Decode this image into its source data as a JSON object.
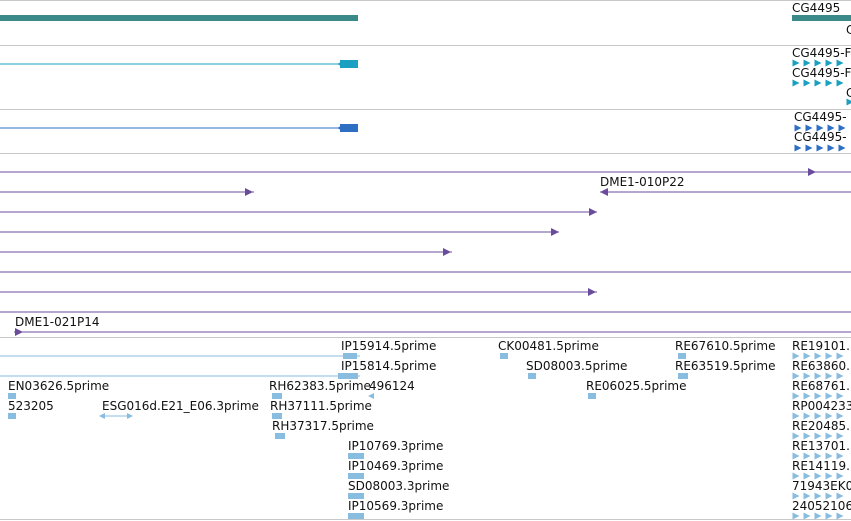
{
  "colors": {
    "gene": "#3a8a8a",
    "transcript_mrna": "#1aa0c0",
    "transcript_cds": "#2e6fc4",
    "clone": "#6a4c9c",
    "est": "#89bde0",
    "separator": "#c8c8c8",
    "text": "#111111"
  },
  "tracks": {
    "gene": {
      "items": [
        {
          "label": "CG4495"
        },
        {
          "label": "C"
        }
      ]
    },
    "mrna": {
      "items": [
        {
          "label": ""
        },
        {
          "label": "CG4495-F"
        },
        {
          "label": "CG4495-F"
        },
        {
          "label": "C"
        }
      ]
    },
    "cds": {
      "items": [
        {
          "label": ""
        },
        {
          "label": "CG4495-"
        },
        {
          "label": "CG4495-"
        }
      ]
    },
    "clones": {
      "items": [
        {
          "label": ""
        },
        {
          "label": "DME1-010P22"
        },
        {
          "label": ""
        },
        {
          "label": ""
        },
        {
          "label": ""
        },
        {
          "label": ""
        },
        {
          "label": ""
        },
        {
          "label": "DME1-021P14"
        }
      ]
    },
    "ests": {
      "labels": [
        "IP15914.5prime",
        "CK00481.5prime",
        "RE67610.5prime",
        "RE19101.",
        "IP15814.5prime",
        "SD08003.5prime",
        "RE63519.5prime",
        "RE63860.",
        "EN03626.5prime",
        "RH62383.5prime",
        "496124",
        "RE06025.5prime",
        "RE68761.",
        "523205",
        "ESG016d.E21_E06.3prime",
        "RH37111.5prime",
        "RP004233",
        "RH37317.5prime",
        "RE20485.",
        "IP10769.3prime",
        "RE13701.",
        "IP10469.3prime",
        "RE14119.",
        "SD08003.3prime",
        "71943EK0",
        "IP10569.3prime",
        "24052106"
      ]
    }
  }
}
